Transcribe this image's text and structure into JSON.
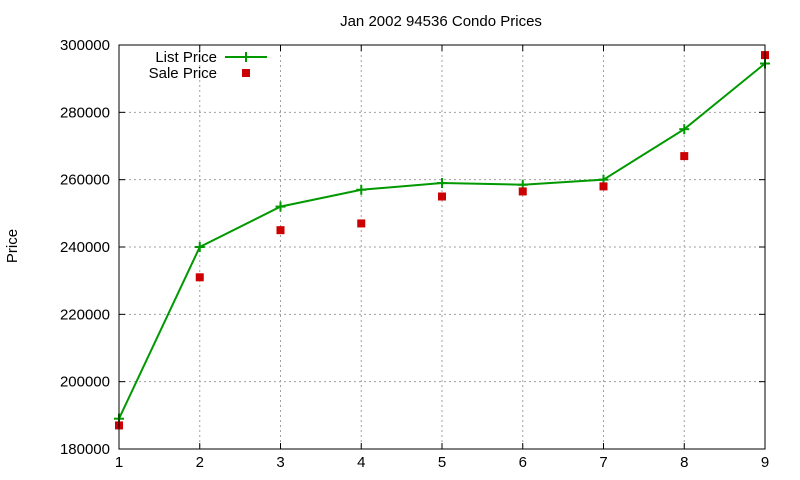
{
  "chart_data": {
    "type": "line",
    "title": "Jan 2002 94536 Condo Prices",
    "xlabel": "",
    "ylabel": "Price",
    "xlim": [
      1,
      9
    ],
    "ylim": [
      180000,
      300000
    ],
    "x_ticks": [
      "1",
      "2",
      "3",
      "4",
      "5",
      "6",
      "7",
      "8",
      "9"
    ],
    "y_ticks": [
      "180000",
      "200000",
      "220000",
      "240000",
      "260000",
      "280000",
      "300000"
    ],
    "grid": true,
    "legend_position": "top-left",
    "x": [
      1,
      2,
      3,
      4,
      5,
      6,
      7,
      8,
      9
    ],
    "series": [
      {
        "name": "List Price",
        "style": "linespoints",
        "marker": "plus",
        "color": "#009900",
        "values": [
          189000,
          240000,
          252000,
          257000,
          259000,
          258500,
          260000,
          275000,
          294500
        ]
      },
      {
        "name": "Sale Price",
        "style": "points",
        "marker": "square",
        "color": "#cc0000",
        "values": [
          187000,
          231000,
          245000,
          247000,
          255000,
          256500,
          258000,
          267000,
          297000
        ]
      }
    ]
  }
}
